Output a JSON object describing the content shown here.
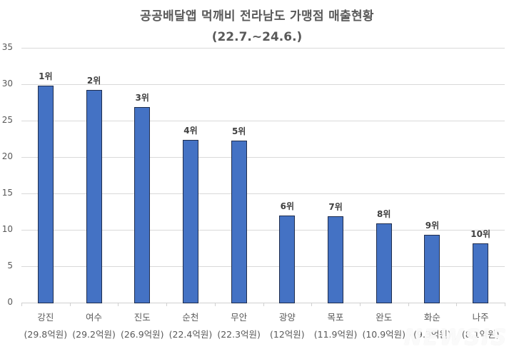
{
  "header": {
    "title": "공공배달앱 먹깨비 전라남도 가맹점 매출현황",
    "subtitle": "(22.7.~24.6.)"
  },
  "y_axis": {
    "ticks": [
      "35",
      "30",
      "25",
      "20",
      "15",
      "10",
      "5",
      "0"
    ]
  },
  "watermark": "NEWSIS",
  "colors": {
    "bar": "#4472c4",
    "bar_border": "#1f2d4d",
    "grid": "#d9d9d9"
  },
  "chart_data": {
    "type": "bar",
    "title": "공공배달앱 먹깨비 전라남도 가맹점 매출현황",
    "subtitle": "(22.7.~24.6.)",
    "categories": [
      "강진",
      "여수",
      "진도",
      "순천",
      "무안",
      "광양",
      "목포",
      "완도",
      "화순",
      "나주"
    ],
    "category_sublabels": [
      "(29.8억원)",
      "(29.2억원)",
      "(26.9억원)",
      "(22.4억원)",
      "(22.3억원)",
      "(12억원)",
      "(11.9억원)",
      "(10.9억원)",
      "(9.3억원)",
      "(8.1억원)"
    ],
    "values": [
      29.8,
      29.2,
      26.9,
      22.4,
      22.3,
      12,
      11.9,
      10.9,
      9.3,
      8.1
    ],
    "data_labels": [
      "1위",
      "2위",
      "3위",
      "4위",
      "5위",
      "6위",
      "7위",
      "8위",
      "9위",
      "10위"
    ],
    "xlabel": "",
    "ylabel": "",
    "ylim": [
      0,
      35
    ],
    "yticks": [
      0,
      5,
      10,
      15,
      20,
      25,
      30,
      35
    ],
    "grid": true,
    "legend": "none",
    "unit": "억원"
  }
}
